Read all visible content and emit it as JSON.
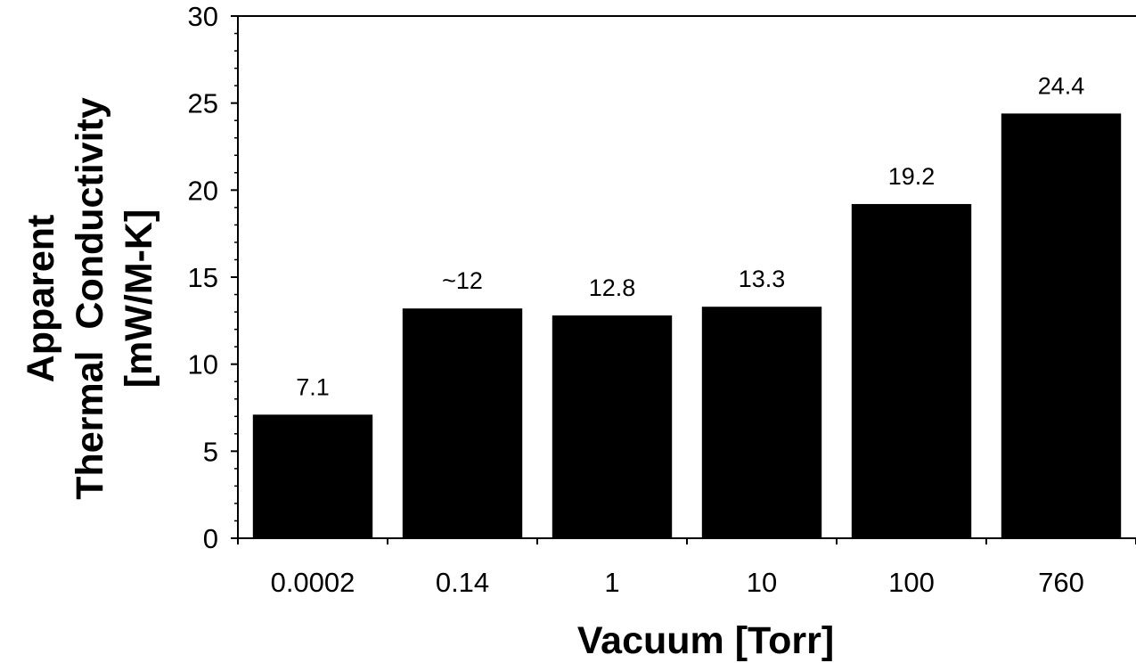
{
  "chart_data": {
    "type": "bar",
    "categories": [
      "0.0002",
      "0.14",
      "1",
      "10",
      "100",
      "760"
    ],
    "values": [
      7.1,
      13.2,
      12.8,
      13.3,
      19.2,
      24.4
    ],
    "data_labels": [
      "7.1",
      "~12",
      "12.8",
      "13.3",
      "19.2",
      "24.4"
    ],
    "xlabel": "Vacuum [Torr]",
    "ylabel_lines": [
      "Apparent",
      "Thermal  Conductivity",
      "[mW/M-K]"
    ],
    "ylim": [
      0,
      30
    ],
    "yticks": [
      "0",
      "5",
      "10",
      "15",
      "20",
      "25",
      "30"
    ],
    "grid": false,
    "colors": {
      "bar": "#000000",
      "axis": "#000000",
      "background": "#ffffff"
    }
  }
}
